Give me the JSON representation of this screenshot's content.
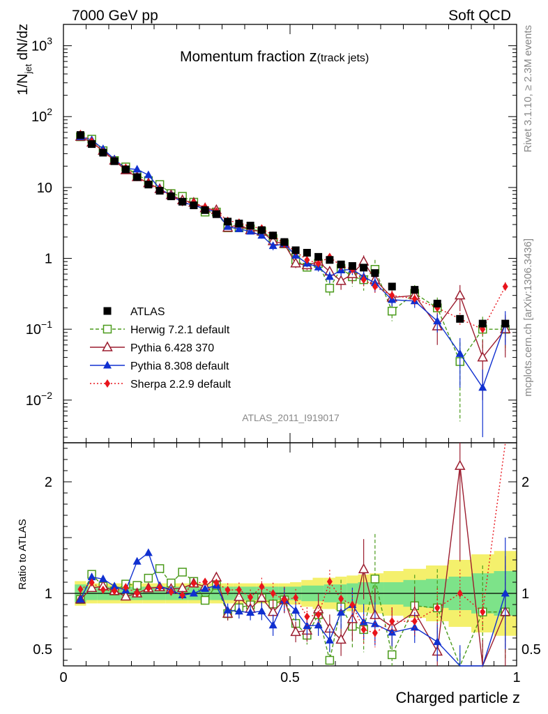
{
  "header": {
    "left": "7000 GeV pp",
    "right": "Soft QCD"
  },
  "side": {
    "top": "Rivet 3.1.10, ≥ 2.3M events",
    "bottom": "mcplots.cern.ch [arXiv:1306.3436]"
  },
  "chart_data": [
    {
      "type": "scatter",
      "title_main": "Momentum fraction ",
      "title_z": "z",
      "title_sub": "(track jets)",
      "ylabel": "1/N",
      "ylabel_sub": "jet",
      "ylabel_tail": " dN/dz",
      "y_scale": "log",
      "xlim": [
        0,
        1
      ],
      "ylim": [
        0.0025,
        2000
      ],
      "yticks": [
        {
          "v": 1000,
          "base": "10",
          "exp": "3"
        },
        {
          "v": 100,
          "base": "10",
          "exp": "2"
        },
        {
          "v": 10,
          "base": "10",
          "exp": ""
        },
        {
          "v": 1,
          "base": "1",
          "exp": ""
        },
        {
          "v": 0.1,
          "base": "10",
          "exp": "−1"
        },
        {
          "v": 0.01,
          "base": "10",
          "exp": "−2"
        }
      ],
      "watermark": "ATLAS_2011_I919017",
      "legend_position": "bottom-left",
      "x": [
        0.0375,
        0.0625,
        0.0875,
        0.1125,
        0.1375,
        0.1625,
        0.1875,
        0.2125,
        0.2375,
        0.2625,
        0.2875,
        0.3125,
        0.3375,
        0.3625,
        0.3875,
        0.4125,
        0.4375,
        0.4625,
        0.4875,
        0.5125,
        0.5375,
        0.5625,
        0.5875,
        0.6125,
        0.6375,
        0.6625,
        0.6875,
        0.725,
        0.775,
        0.825,
        0.875,
        0.925,
        0.975
      ],
      "series": [
        {
          "name": "ATLAS",
          "color": "#000000",
          "marker": "square-filled",
          "dash": "none",
          "values": [
            55,
            41,
            31,
            23.5,
            18,
            14,
            11,
            9,
            7.5,
            6.3,
            5.6,
            4.8,
            4.2,
            3.3,
            3.1,
            2.9,
            2.5,
            2.1,
            1.7,
            1.3,
            1.2,
            1.05,
            0.95,
            0.82,
            0.78,
            0.74,
            0.62,
            0.4,
            0.36,
            0.23,
            0.14,
            0.12,
            0.12
          ],
          "errors": []
        },
        {
          "name": "Herwig 7.2.1 default",
          "color": "#4a9a1a",
          "marker": "square-open",
          "dash": "5,3",
          "values": [
            52,
            48,
            33,
            24,
            19.5,
            15,
            12.5,
            11,
            8.2,
            7.5,
            6.2,
            4.5,
            4.5,
            2.7,
            2.7,
            2.6,
            2.4,
            1.9,
            1.6,
            0.95,
            0.75,
            0.85,
            0.38,
            0.72,
            0.55,
            0.5,
            0.7,
            0.18,
            0.32,
            0.2,
            0.035,
            0.1,
            0.1
          ],
          "errors": [
            0,
            0,
            0,
            0,
            0,
            0,
            0,
            0,
            0,
            0,
            0,
            0,
            0,
            0.2,
            0.2,
            0.2,
            0.2,
            0.2,
            0.2,
            0.12,
            0.1,
            0.15,
            0.1,
            0.2,
            0.15,
            0.15,
            0.25,
            0.05,
            0.1,
            0.08,
            0.03,
            0.05,
            0.05
          ]
        },
        {
          "name": "Pythia 6.428 370",
          "color": "#9b1c2e",
          "marker": "triangle-open",
          "dash": "none",
          "values": [
            52,
            43,
            33,
            24,
            17.5,
            14,
            11.5,
            9.5,
            7.8,
            6.6,
            6.1,
            5.1,
            4.8,
            2.7,
            3.0,
            2.5,
            2.4,
            1.75,
            1.6,
            0.85,
            0.8,
            0.9,
            0.65,
            0.48,
            0.6,
            0.9,
            0.5,
            0.28,
            0.3,
            0.11,
            0.3,
            0.04,
            0.1
          ],
          "errors": [
            0,
            0,
            0,
            0,
            0,
            0,
            0,
            0,
            0,
            0,
            0,
            0,
            0,
            0.2,
            0.2,
            0.2,
            0.2,
            0.2,
            0.2,
            0.12,
            0.12,
            0.15,
            0.12,
            0.12,
            0.15,
            0.2,
            0.15,
            0.07,
            0.08,
            0.05,
            0.12,
            0.03,
            0.06
          ]
        },
        {
          "name": "Pythia 8.308 default",
          "color": "#1030d0",
          "marker": "triangle-filled",
          "dash": "none",
          "values": [
            52,
            47,
            35,
            25,
            18.5,
            18,
            15,
            9.6,
            7.7,
            6.2,
            5.6,
            5.0,
            4.5,
            2.8,
            2.6,
            2.4,
            2.1,
            1.5,
            1.6,
            1.1,
            0.85,
            0.75,
            0.55,
            0.68,
            0.7,
            0.55,
            0.45,
            0.26,
            0.25,
            0.13,
            0.045,
            0.015,
            0.12
          ],
          "errors": [
            0,
            0,
            0,
            0,
            0,
            0,
            0,
            0,
            0,
            0,
            0,
            0,
            0,
            0.2,
            0.2,
            0.2,
            0.2,
            0.2,
            0.2,
            0.12,
            0.1,
            0.1,
            0.1,
            0.12,
            0.12,
            0.12,
            0.12,
            0.05,
            0.05,
            0.04,
            0.03,
            0.012,
            0.06
          ]
        },
        {
          "name": "Sherpa 2.2.9 default",
          "color": "#e8141c",
          "marker": "diamond-filled",
          "dash": "2,3",
          "values": [
            57,
            45,
            32,
            24,
            19,
            14,
            11.5,
            9.5,
            7.6,
            6.2,
            6.1,
            5.3,
            4.6,
            3.4,
            3.2,
            2.8,
            2.65,
            2.1,
            1.6,
            1.25,
            0.95,
            0.85,
            1.05,
            0.78,
            0.7,
            0.5,
            0.4,
            0.3,
            0.27,
            0.2,
            0.14,
            0.1,
            0.4
          ],
          "errors": [
            0,
            0,
            0,
            0,
            0,
            0,
            0,
            0,
            0,
            0,
            0,
            0,
            0,
            0.2,
            0.2,
            0.2,
            0.2,
            0.2,
            0.2,
            0.1,
            0.1,
            0.1,
            0.1,
            0.1,
            0.1,
            0.1,
            0.08,
            0.05,
            0.05,
            0.04,
            0.03,
            0.02,
            0.06
          ]
        }
      ]
    },
    {
      "type": "line",
      "ylabel": "Ratio to ATLAS",
      "xlabel": "Charged particle z",
      "xlim": [
        0,
        1
      ],
      "ylim": [
        0.35,
        2.35
      ],
      "xticks": [
        "0",
        "0.5",
        "1"
      ],
      "yticks": [
        "0.5",
        "1",
        "2"
      ],
      "band_inner": [
        0.08,
        0.06,
        0.06,
        0.06,
        0.06,
        0.06,
        0.06,
        0.06,
        0.06,
        0.06,
        0.06,
        0.06,
        0.06,
        0.06,
        0.06,
        0.06,
        0.06,
        0.06,
        0.06,
        0.06,
        0.07,
        0.07,
        0.08,
        0.08,
        0.09,
        0.1,
        0.1,
        0.1,
        0.12,
        0.13,
        0.15,
        0.18,
        0.2
      ],
      "band_outer": [
        0.11,
        0.09,
        0.09,
        0.09,
        0.09,
        0.09,
        0.09,
        0.09,
        0.09,
        0.09,
        0.09,
        0.09,
        0.09,
        0.09,
        0.09,
        0.09,
        0.09,
        0.09,
        0.09,
        0.1,
        0.12,
        0.14,
        0.14,
        0.15,
        0.16,
        0.17,
        0.18,
        0.2,
        0.22,
        0.25,
        0.3,
        0.35,
        0.38
      ]
    }
  ]
}
